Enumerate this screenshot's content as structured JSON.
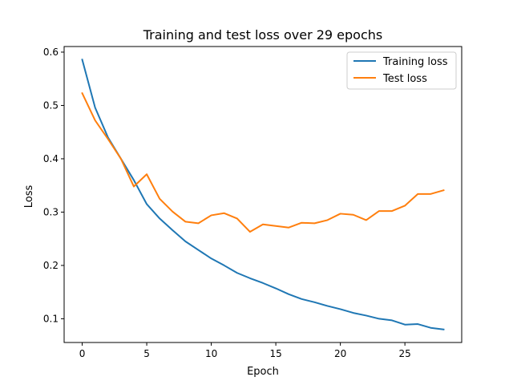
{
  "chart_data": {
    "type": "line",
    "title": "Training and test loss over 29 epochs",
    "xlabel": "Epoch",
    "ylabel": "Loss",
    "xlim": [
      -1.4,
      29.4
    ],
    "ylim": [
      0.0555,
      0.6105
    ],
    "xticks": [
      0,
      5,
      10,
      15,
      20,
      25
    ],
    "yticks": [
      0.1,
      0.2,
      0.3,
      0.4,
      0.5,
      0.6
    ],
    "grid": false,
    "legend_position": "top-right",
    "x": [
      0,
      1,
      2,
      3,
      4,
      5,
      6,
      7,
      8,
      9,
      10,
      11,
      12,
      13,
      14,
      15,
      16,
      17,
      18,
      19,
      20,
      21,
      22,
      23,
      24,
      25,
      26,
      27,
      28
    ],
    "series": [
      {
        "name": "Training loss",
        "color": "#1f77b4",
        "values": [
          0.586,
          0.496,
          0.44,
          0.4,
          0.36,
          0.315,
          0.288,
          0.266,
          0.245,
          0.229,
          0.213,
          0.2,
          0.186,
          0.176,
          0.167,
          0.157,
          0.146,
          0.137,
          0.131,
          0.124,
          0.118,
          0.111,
          0.106,
          0.1,
          0.097,
          0.089,
          0.09,
          0.083,
          0.08
        ]
      },
      {
        "name": "Test loss",
        "color": "#ff7f0e",
        "values": [
          0.523,
          0.472,
          0.437,
          0.4,
          0.348,
          0.371,
          0.325,
          0.301,
          0.282,
          0.279,
          0.294,
          0.298,
          0.288,
          0.263,
          0.277,
          0.274,
          0.271,
          0.28,
          0.279,
          0.285,
          0.297,
          0.295,
          0.285,
          0.302,
          0.302,
          0.312,
          0.334,
          0.334,
          0.341
        ]
      }
    ]
  }
}
